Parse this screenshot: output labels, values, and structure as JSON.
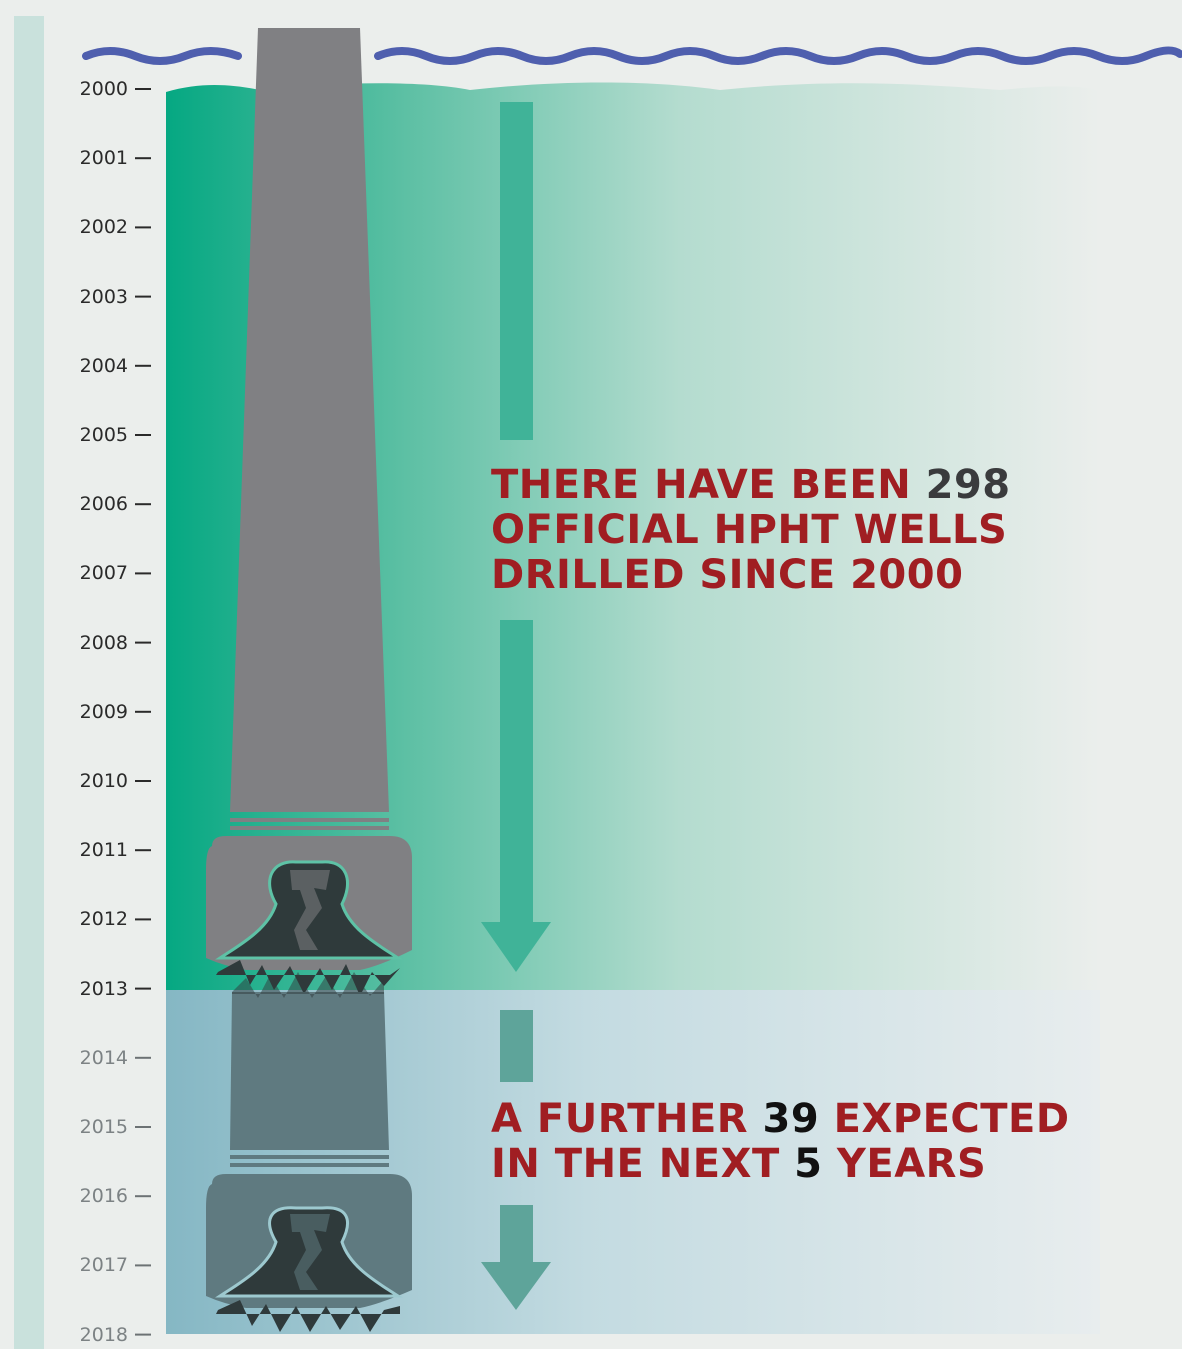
{
  "years": [
    "2000",
    "2001",
    "2002",
    "2003",
    "2004",
    "2005",
    "2006",
    "2007",
    "2008",
    "2009",
    "2010",
    "2011",
    "2012",
    "2013",
    "2014",
    "2015",
    "2016",
    "2017",
    "2018"
  ],
  "future_start_index": 14,
  "statement_1": {
    "line1_prefix": "THERE HAVE BEEN ",
    "line1_number": "298",
    "line2": "OFFICIAL HPHT WELLS",
    "line3": "DRILLED SINCE 2000"
  },
  "statement_2": {
    "line1_prefix": "A FURTHER ",
    "line1_number": "39",
    "line1_suffix": " EXPECTED",
    "line2_prefix": "IN THE NEXT ",
    "line2_number": "5",
    "line2_suffix": " YEARS"
  },
  "colors": {
    "water_surface": "#4f5fae",
    "drilled_zone": "#05a882",
    "future_zone": "#88b8c5",
    "drill_body": "#808083",
    "drill_teeth": "#2f3a3b",
    "arrow_past": "#40b398",
    "arrow_future": "#5ea49a",
    "highlight_text": "#a01e22",
    "timeline_bar": "#c9e1dc"
  },
  "icons": [
    "drill-bit-icon",
    "down-arrow-icon",
    "wave-icon"
  ]
}
